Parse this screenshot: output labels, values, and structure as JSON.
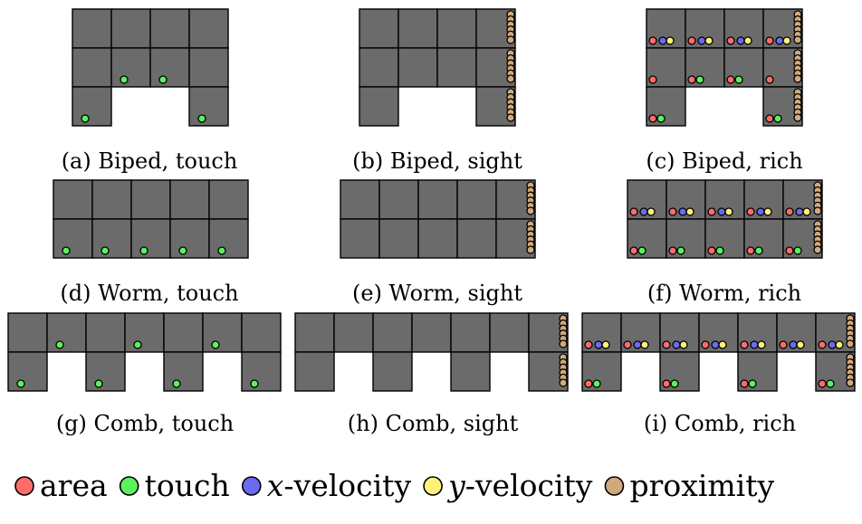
{
  "colors": {
    "cell_fill": "#6b6b6b",
    "cell_stroke": "#000000",
    "area": "#ff6b6b",
    "touch": "#5cf25c",
    "x_velocity": "#6b6bf2",
    "y_velocity": "#fff27a",
    "proximity": "#d1a97e"
  },
  "panels": [
    {
      "id": "a",
      "caption": "(a) Biped, touch",
      "morph": "biped",
      "sensor": "touch"
    },
    {
      "id": "b",
      "caption": "(b) Biped, sight",
      "morph": "biped",
      "sensor": "sight"
    },
    {
      "id": "c",
      "caption": "(c) Biped, rich",
      "morph": "biped",
      "sensor": "rich"
    },
    {
      "id": "d",
      "caption": "(d) Worm, touch",
      "morph": "worm",
      "sensor": "touch"
    },
    {
      "id": "e",
      "caption": "(e) Worm, sight",
      "morph": "worm",
      "sensor": "sight"
    },
    {
      "id": "f",
      "caption": "(f) Worm, rich",
      "morph": "worm",
      "sensor": "rich"
    },
    {
      "id": "g",
      "caption": "(g) Comb, touch",
      "morph": "comb",
      "sensor": "touch"
    },
    {
      "id": "h",
      "caption": "(h) Comb, sight",
      "morph": "comb",
      "sensor": "sight"
    },
    {
      "id": "i",
      "caption": "(i) Comb, rich",
      "morph": "comb",
      "sensor": "rich"
    }
  ],
  "legend": [
    {
      "key": "area",
      "text": "area",
      "italic_prefix": "",
      "color": "#ff6b6b"
    },
    {
      "key": "touch",
      "text": "touch",
      "italic_prefix": "",
      "color": "#5cf25c"
    },
    {
      "key": "x_velocity",
      "text": "-velocity",
      "italic_prefix": "x",
      "color": "#6b6bf2"
    },
    {
      "key": "y_velocity",
      "text": "-velocity",
      "italic_prefix": "y",
      "color": "#fff27a"
    },
    {
      "key": "proximity",
      "text": "proximity",
      "italic_prefix": "",
      "color": "#d1a97e"
    }
  ]
}
